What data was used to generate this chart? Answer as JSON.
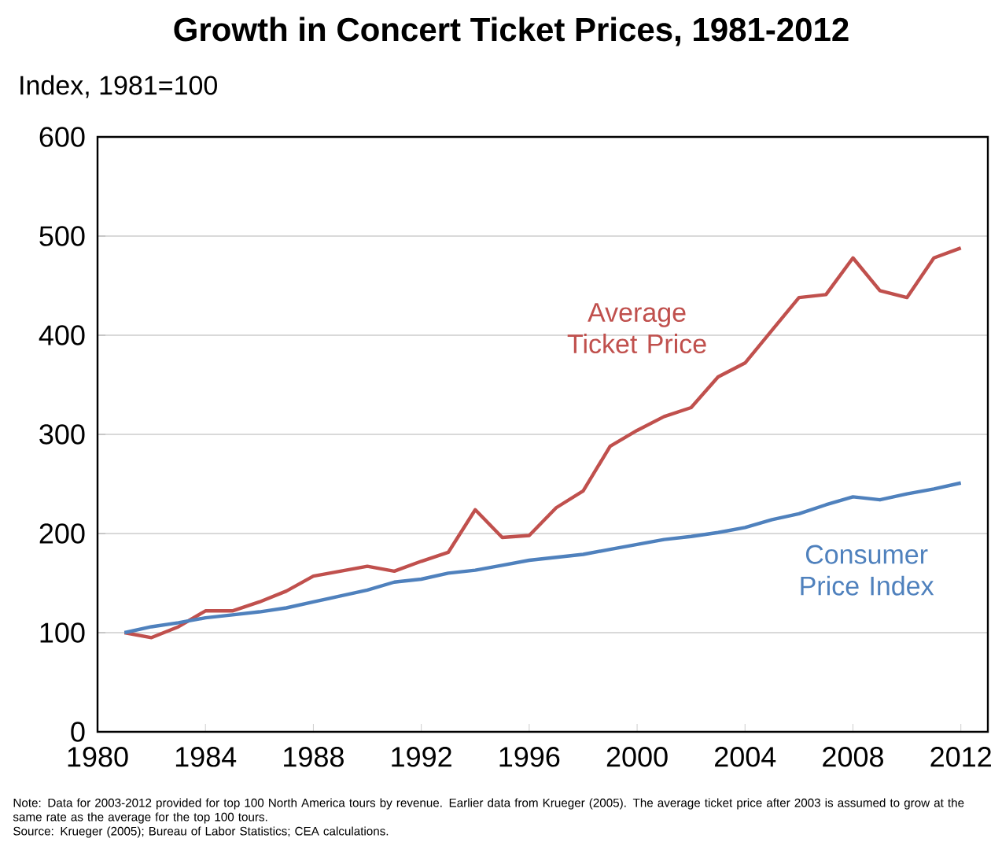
{
  "chart_data": {
    "type": "line",
    "title": "Growth in Concert Ticket Prices, 1981-2012",
    "ylabel": "Index, 1981=100",
    "x": [
      1981,
      1982,
      1983,
      1984,
      1985,
      1986,
      1987,
      1988,
      1989,
      1990,
      1991,
      1992,
      1993,
      1994,
      1995,
      1996,
      1997,
      1998,
      1999,
      2000,
      2001,
      2002,
      2003,
      2004,
      2005,
      2006,
      2007,
      2008,
      2009,
      2010,
      2011,
      2012
    ],
    "series": [
      {
        "name": "Average Ticket Price",
        "color": "#c0504d",
        "values": [
          100,
          95,
          106,
          122,
          122,
          131,
          142,
          157,
          162,
          167,
          162,
          172,
          181,
          224,
          196,
          198,
          226,
          243,
          288,
          304,
          318,
          327,
          358,
          372,
          405,
          438,
          441,
          478,
          445,
          438,
          478,
          488
        ]
      },
      {
        "name": "Consumer Price Index",
        "color": "#4f81bd",
        "values": [
          100,
          106,
          110,
          115,
          118,
          121,
          125,
          131,
          137,
          143,
          151,
          154,
          160,
          163,
          168,
          173,
          176,
          179,
          184,
          189,
          194,
          197,
          201,
          206,
          214,
          220,
          229,
          237,
          234,
          240,
          245,
          251
        ]
      }
    ],
    "xlim": [
      1980,
      2013
    ],
    "xticks": [
      1980,
      1984,
      1988,
      1992,
      1996,
      2000,
      2004,
      2008,
      2012
    ],
    "ylim": [
      0,
      600
    ],
    "yticks": [
      0,
      100,
      200,
      300,
      400,
      500,
      600
    ],
    "grid": "y",
    "marker": "none",
    "line_style": "solid",
    "annotations": [
      "Note: Data for 2003-2012 provided for top 100 North America tours by revenue. Earlier data from Krueger (2005). The average ticket price after 2003 is assumed to grow at the same rate as the average for the top 100 tours.",
      "Source: Krueger (2005); Bureau of Labor Statistics; CEA calculations."
    ]
  }
}
